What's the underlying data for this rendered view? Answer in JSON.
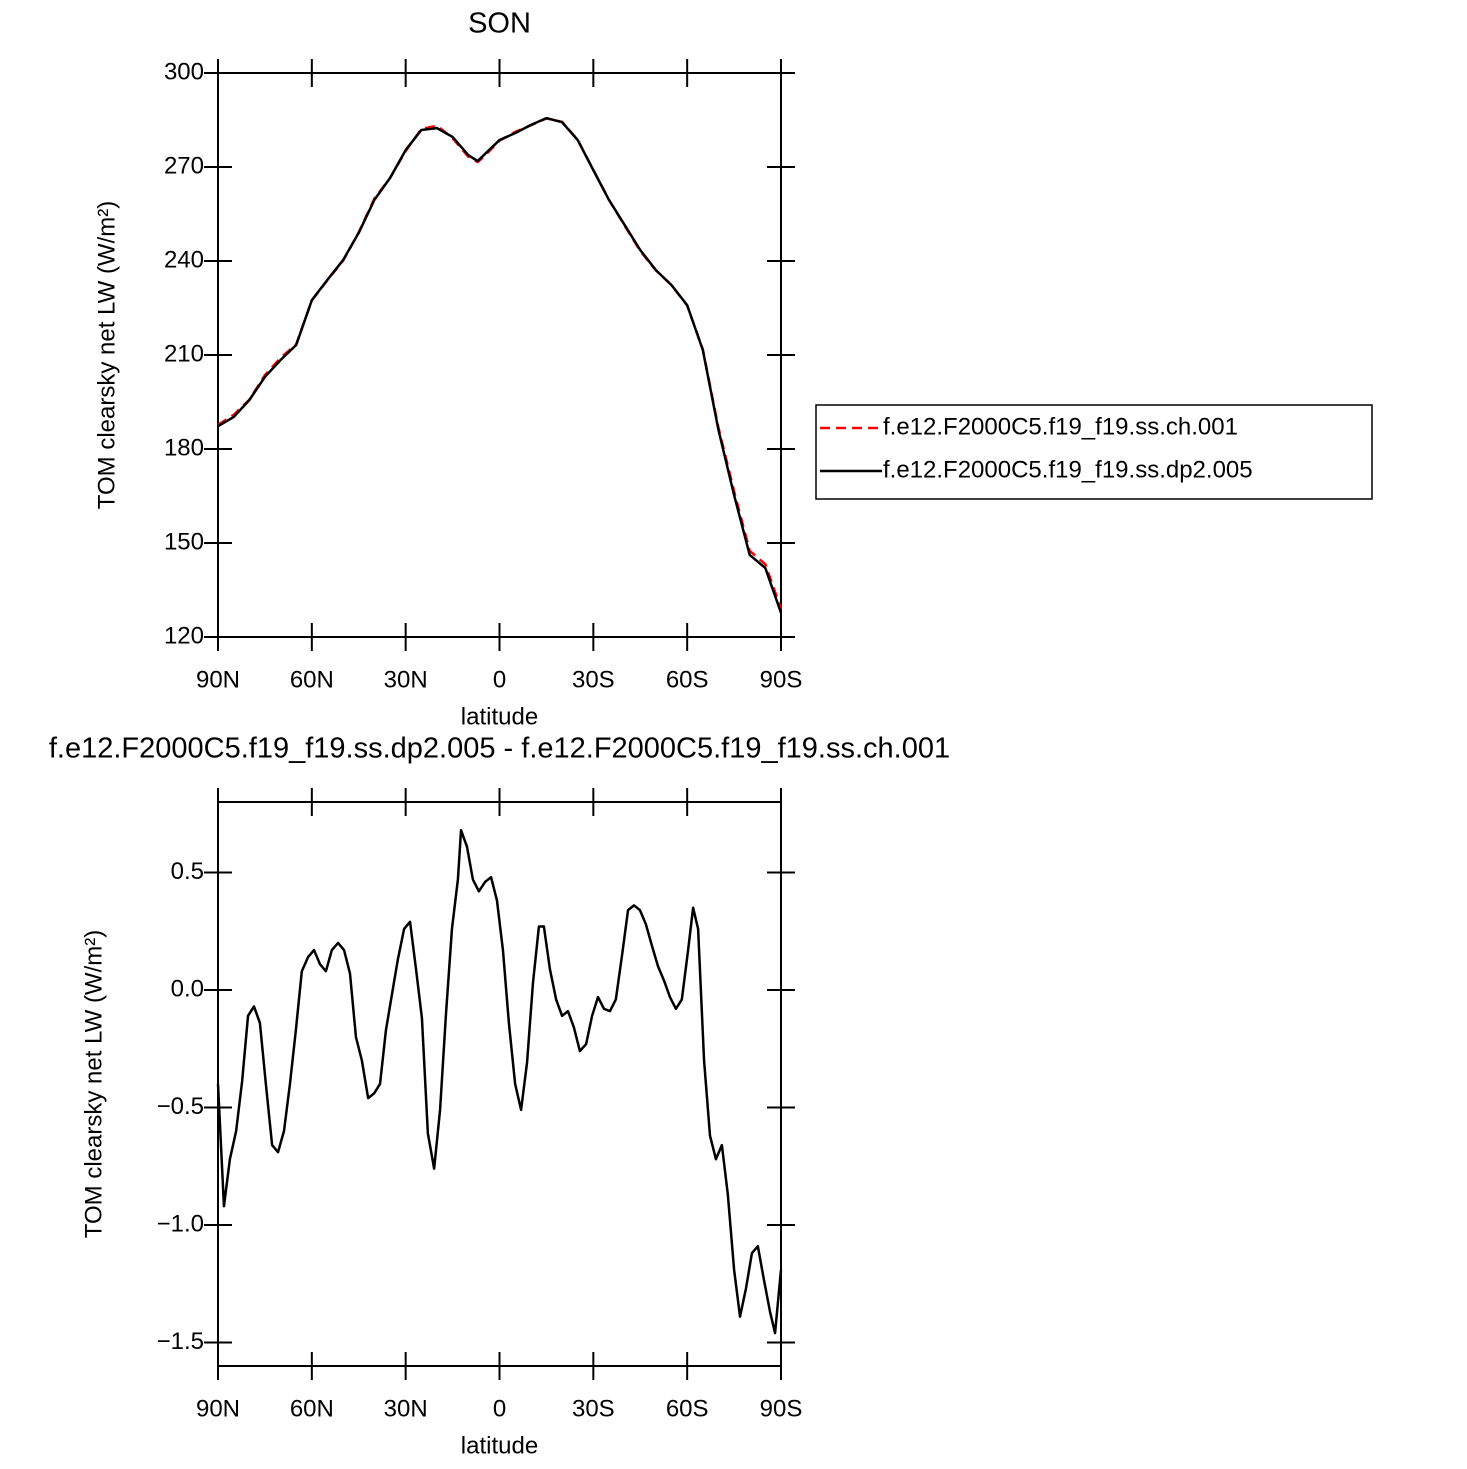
{
  "chart_data": [
    {
      "type": "line",
      "title": "SON",
      "ylabel": "TOM clearsky net LW (W/m²)",
      "xlabel": "latitude",
      "xlim": [
        90,
        -90
      ],
      "xticks": [
        {
          "value": 90,
          "label": "90N"
        },
        {
          "value": 60,
          "label": "60N"
        },
        {
          "value": 30,
          "label": "30N"
        },
        0,
        {
          "value": -30,
          "label": "30S"
        },
        {
          "value": -60,
          "label": "60S"
        },
        {
          "value": -90,
          "label": "90S"
        }
      ],
      "ylim": [
        120,
        300
      ],
      "yticks": [
        120,
        150,
        180,
        210,
        240,
        270,
        300
      ],
      "legend": "right",
      "x": [
        90,
        85,
        80,
        75,
        70,
        65,
        60,
        55,
        50,
        45,
        40,
        35,
        30,
        25,
        20,
        15,
        10,
        7,
        5,
        0,
        -5,
        -10,
        -15,
        -20,
        -25,
        -30,
        -35,
        -40,
        -45,
        -50,
        -55,
        -60,
        -65,
        -70,
        -75,
        -80,
        -85,
        -90
      ],
      "series": [
        {
          "name": "f.e12.F2000C5.f19_f19.ss.ch.001",
          "color": "#ff0000",
          "dash": true,
          "values": [
            187.7,
            190.9,
            195.7,
            203.6,
            209.1,
            213.4,
            227.4,
            233.9,
            240.1,
            249.2,
            259.9,
            266.5,
            275.1,
            282.1,
            283.2,
            279.2,
            273.3,
            271.6,
            273.3,
            278.4,
            281.2,
            283.3,
            285.5,
            284.4,
            278.7,
            269.1,
            259.5,
            251.3,
            243.2,
            237.0,
            232.3,
            225.8,
            211.8,
            186.8,
            166.5,
            147.5,
            143.2,
            129.0
          ]
        },
        {
          "name": "f.e12.F2000C5.f19_f19.ss.dp2.005",
          "color": "#000000",
          "dash": false,
          "values": [
            187.3,
            190.2,
            195.6,
            203.0,
            208.4,
            213.2,
            227.5,
            234.0,
            240.3,
            249.0,
            259.5,
            266.5,
            275.4,
            281.8,
            282.4,
            279.6,
            273.8,
            271.9,
            273.8,
            278.6,
            280.8,
            283.4,
            285.6,
            284.3,
            278.6,
            269.0,
            259.5,
            251.5,
            243.5,
            237.1,
            232.3,
            225.9,
            211.6,
            186.1,
            165.3,
            146.2,
            142.0,
            127.7
          ]
        }
      ]
    },
    {
      "type": "line",
      "title": "f.e12.F2000C5.f19_f19.ss.dp2.005 - f.e12.F2000C5.f19_f19.ss.ch.001",
      "ylabel": "TOM clearsky net LW (W/m²)",
      "xlabel": "latitude",
      "xlim": [
        90,
        -90
      ],
      "xticks": [
        {
          "value": 90,
          "label": "90N"
        },
        {
          "value": 60,
          "label": "60N"
        },
        {
          "value": 30,
          "label": "30N"
        },
        0,
        {
          "value": -30,
          "label": "30S"
        },
        {
          "value": -60,
          "label": "60S"
        },
        {
          "value": -90,
          "label": "90S"
        }
      ],
      "ylim": [
        -1.6,
        0.8
      ],
      "yticks": [
        {
          "value": -1.5,
          "label": "−1.5"
        },
        {
          "value": -1.0,
          "label": "−1.0"
        },
        {
          "value": -0.5,
          "label": "−0.5"
        },
        {
          "value": 0,
          "label": "0.0"
        },
        0.5
      ],
      "color": "#000000",
      "x": [
        90,
        88.1,
        86.2,
        84.2,
        82.3,
        80.4,
        78.5,
        76.6,
        74.7,
        72.7,
        70.8,
        68.9,
        67.0,
        65.1,
        63.2,
        61.2,
        59.3,
        57.4,
        55.5,
        53.6,
        51.6,
        49.7,
        47.8,
        45.9,
        44.0,
        42.0,
        40.1,
        38.2,
        36.3,
        34.4,
        32.5,
        30.5,
        28.6,
        26.7,
        24.8,
        22.9,
        20.9,
        19.0,
        17.1,
        15.2,
        13.3,
        12.3,
        10.4,
        8.5,
        6.6,
        4.6,
        2.7,
        0.8,
        -1.1,
        -3.0,
        -5.0,
        -6.9,
        -8.8,
        -10.7,
        -12.6,
        -14.2,
        -16.1,
        -18.1,
        -20.0,
        -21.9,
        -23.8,
        -25.7,
        -27.7,
        -29.6,
        -31.5,
        -33.4,
        -35.3,
        -37.2,
        -39.2,
        -41.1,
        -43.0,
        -44.9,
        -46.8,
        -48.7,
        -50.7,
        -52.6,
        -54.5,
        -56.4,
        -58.3,
        -60.3,
        -61.9,
        -63.5,
        -65.4,
        -67.3,
        -69.2,
        -71.1,
        -73.0,
        -75.0,
        -76.9,
        -78.8,
        -80.7,
        -82.6,
        -84.5,
        -86.5,
        -88.1,
        -90
      ],
      "values": [
        -0.4,
        -0.92,
        -0.72,
        -0.6,
        -0.39,
        -0.11,
        -0.07,
        -0.14,
        -0.4,
        -0.66,
        -0.69,
        -0.6,
        -0.4,
        -0.17,
        0.08,
        0.14,
        0.17,
        0.11,
        0.08,
        0.17,
        0.2,
        0.17,
        0.07,
        -0.2,
        -0.3,
        -0.46,
        -0.44,
        -0.4,
        -0.17,
        -0.02,
        0.13,
        0.26,
        0.29,
        0.09,
        -0.12,
        -0.61,
        -0.76,
        -0.51,
        -0.1,
        0.26,
        0.47,
        0.68,
        0.61,
        0.47,
        0.42,
        0.46,
        0.48,
        0.38,
        0.17,
        -0.14,
        -0.4,
        -0.51,
        -0.31,
        0.03,
        0.27,
        0.27,
        0.09,
        -0.04,
        -0.11,
        -0.09,
        -0.16,
        -0.26,
        -0.23,
        -0.11,
        -0.03,
        -0.08,
        -0.09,
        -0.04,
        0.15,
        0.34,
        0.36,
        0.34,
        0.28,
        0.19,
        0.1,
        0.04,
        -0.03,
        -0.08,
        -0.04,
        0.17,
        0.35,
        0.26,
        -0.3,
        -0.62,
        -0.72,
        -0.66,
        -0.87,
        -1.19,
        -1.39,
        -1.27,
        -1.12,
        -1.09,
        -1.23,
        -1.37,
        -1.46,
        -1.19
      ]
    }
  ]
}
